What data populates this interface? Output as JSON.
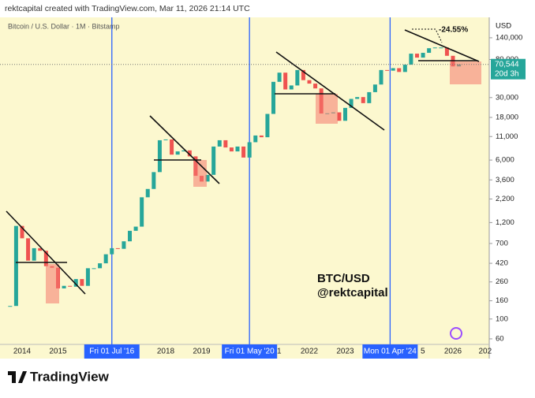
{
  "header": "rektcapital created with TradingView.com, Mar 11, 2026 21:14 UTC",
  "footer": "TradingView",
  "chart_data": {
    "type": "candlestick",
    "title": "Bitcoin / U.S. Dollar · 1M · Bitstamp",
    "currency": "USD",
    "annotations": [
      "BTC/USD",
      "@rektcapital",
      "-24.55%"
    ],
    "last_price": {
      "value": 70544,
      "label": "70,544",
      "countdown": "20d 3h",
      "color": "#26a69a"
    },
    "up_color": "#26a69a",
    "down_color": "#ef5350",
    "log_scale": true,
    "ylim": [
      52,
      237000
    ],
    "yticks": [
      {
        "value": 140000,
        "label": "140,000"
      },
      {
        "value": 80000,
        "label": "80,000"
      },
      {
        "value": 30000,
        "label": "30,000"
      },
      {
        "value": 18000,
        "label": "18,000"
      },
      {
        "value": 11000,
        "label": "11,000"
      },
      {
        "value": 6000,
        "label": "6,000"
      },
      {
        "value": 3600,
        "label": "3,600"
      },
      {
        "value": 2200,
        "label": "2,200"
      },
      {
        "value": 1200,
        "label": "1,200"
      },
      700,
      420,
      260,
      160,
      100,
      60
    ],
    "xticks": [
      {
        "value": "2014-01",
        "label": "2014"
      },
      {
        "value": "2015-01",
        "label": "2015"
      },
      {
        "value": "2018-01",
        "label": "2018"
      },
      {
        "value": "2019-01",
        "label": "2019"
      },
      {
        "value": "2021-01",
        "label": "1"
      },
      {
        "value": "2022-01",
        "label": "2022"
      },
      {
        "value": "2023-01",
        "label": "2023"
      },
      {
        "value": "2025-01",
        "label": "5"
      },
      {
        "value": "2026-01",
        "label": "2026"
      },
      {
        "value": "2027-01",
        "label": "202"
      }
    ],
    "halvings": [
      {
        "x": "2016-07",
        "label": "Fri 01 Jul '16"
      },
      {
        "x": "2020-05",
        "label": "Fri 01 May '20"
      },
      {
        "x": "2024-04",
        "label": "Mon 01 Apr '24"
      }
    ],
    "halving_color": "#2962ff",
    "x": [
      "2013-09",
      "2013-11",
      "2014-01",
      "2014-03",
      "2014-05",
      "2014-07",
      "2014-09",
      "2014-11",
      "2015-01",
      "2015-03",
      "2015-05",
      "2015-07",
      "2015-09",
      "2015-11",
      "2016-01",
      "2016-03",
      "2016-05",
      "2016-07",
      "2016-09",
      "2016-11",
      "2017-01",
      "2017-03",
      "2017-05",
      "2017-07",
      "2017-09",
      "2017-11",
      "2018-01",
      "2018-03",
      "2018-05",
      "2018-07",
      "2018-09",
      "2018-11",
      "2019-01",
      "2019-03",
      "2019-05",
      "2019-07",
      "2019-09",
      "2019-11",
      "2020-01",
      "2020-03",
      "2020-05",
      "2020-07",
      "2020-09",
      "2020-11",
      "2021-01",
      "2021-03",
      "2021-05",
      "2021-07",
      "2021-09",
      "2021-11",
      "2022-01",
      "2022-03",
      "2022-05",
      "2022-07",
      "2022-09",
      "2022-11",
      "2023-01",
      "2023-03",
      "2023-05",
      "2023-07",
      "2023-09",
      "2023-11",
      "2024-01",
      "2024-03",
      "2024-05",
      "2024-07",
      "2024-09",
      "2024-11",
      "2025-01",
      "2025-03",
      "2025-05",
      "2025-07",
      "2025-09",
      "2025-11",
      "2026-01",
      "2026-03"
    ],
    "values": [
      140,
      1100,
      800,
      450,
      620,
      580,
      390,
      375,
      220,
      235,
      230,
      280,
      235,
      370,
      370,
      420,
      530,
      620,
      610,
      740,
      970,
      1080,
      2300,
      2850,
      4400,
      10000,
      10200,
      6900,
      7500,
      7700,
      6600,
      4000,
      3450,
      4100,
      8500,
      10000,
      8300,
      7500,
      8500,
      6400,
      9500,
      11300,
      10800,
      19700,
      45000,
      57000,
      37000,
      41000,
      61000,
      47000,
      43000,
      38000,
      19900,
      20000,
      20500,
      16500,
      23000,
      29000,
      30400,
      26000,
      34500,
      42000,
      61000,
      60000,
      64000,
      58000,
      70000,
      93000,
      84000,
      95000,
      107000,
      109000,
      109000,
      88000,
      67000,
      70544
    ]
  }
}
